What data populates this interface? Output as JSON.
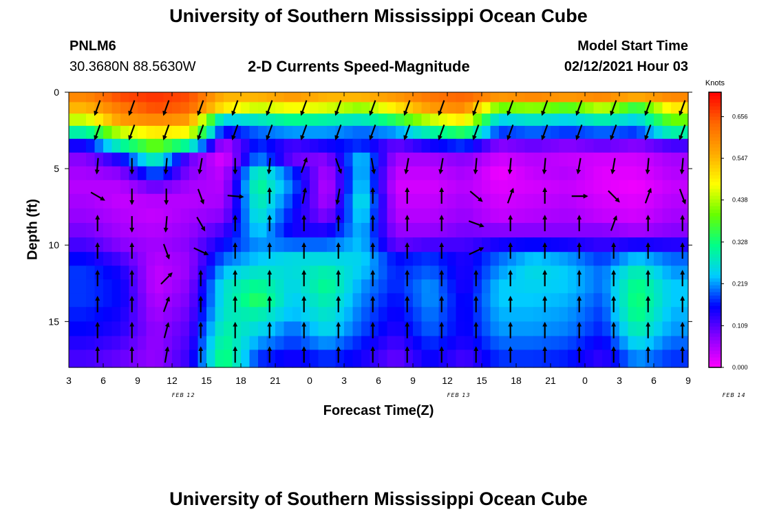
{
  "header": {
    "title_top": "University of Southern Mississippi Ocean Cube",
    "title_bottom": "University of Southern Mississippi Ocean Cube",
    "station_id": "PNLM6",
    "station_coords": "30.3680N 88.5630W",
    "plot_title": "2-D Currents Speed-Magnitude",
    "model_start_label": "Model Start Time",
    "model_start_value": "02/12/2021 Hour 03"
  },
  "chart_data": {
    "type": "heatmap",
    "title": "2-D Currents Speed-Magnitude",
    "xlabel": "Forecast Time(Z)",
    "ylabel": "Depth (ft)",
    "x_hours": [
      3,
      6,
      9,
      12,
      15,
      18,
      21,
      0,
      3,
      6,
      9,
      12,
      15,
      18,
      21,
      0,
      3,
      6,
      9
    ],
    "x_tick_labels": [
      "3",
      "6",
      "9",
      "12",
      "15",
      "18",
      "21",
      "0",
      "3",
      "6",
      "9",
      "12",
      "15",
      "18",
      "21",
      "0",
      "3",
      "6",
      "9"
    ],
    "date_labels": [
      {
        "label": "FEB 12",
        "at_hour": 13
      },
      {
        "label": "FEB 13",
        "at_hour": 37
      },
      {
        "label": "FEB 14",
        "at_hour": 61
      }
    ],
    "xlim_hours_since_start": [
      0,
      54
    ],
    "y_ticks": [
      0,
      5,
      10,
      15
    ],
    "ylim": [
      0,
      18
    ],
    "y_inverted": true,
    "colorbar": {
      "unit": "Knots",
      "ticks": [
        "0.000",
        "0.109",
        "0.219",
        "0.328",
        "0.438",
        "0.547",
        "0.656"
      ],
      "range": [
        0,
        0.72
      ],
      "colors": [
        "#ff00ff",
        "#8800ff",
        "#0000ff",
        "#00ccff",
        "#00ff88",
        "#66ff00",
        "#ffff00",
        "#ffaa00",
        "#ff6600",
        "#ff0000"
      ]
    },
    "depth_rows": [
      0.3,
      1.0,
      1.8,
      2.6,
      3.5,
      4.4,
      5.3,
      6.2,
      7.1,
      8.1,
      9.0,
      10.0,
      10.9,
      11.8,
      12.7,
      13.6,
      14.5,
      15.5,
      16.4,
      17.3
    ],
    "column_centers_hours": [
      1.5,
      4.5,
      7.5,
      10.5,
      13.5,
      16.5,
      19.5,
      22.5,
      25.5,
      28.5,
      31.5,
      34.5,
      37.5,
      40.5,
      43.5,
      46.5,
      49.5,
      52.5
    ],
    "speed_knots_rows": [
      [
        0.6,
        0.66,
        0.68,
        0.66,
        0.55,
        0.55,
        0.58,
        0.55,
        0.55,
        0.58,
        0.62,
        0.64,
        0.58,
        0.6,
        0.58,
        0.6,
        0.56,
        0.6
      ],
      [
        0.55,
        0.62,
        0.66,
        0.64,
        0.5,
        0.45,
        0.48,
        0.46,
        0.42,
        0.5,
        0.58,
        0.6,
        0.4,
        0.42,
        0.38,
        0.45,
        0.35,
        0.5
      ],
      [
        0.45,
        0.58,
        0.6,
        0.58,
        0.25,
        0.28,
        0.32,
        0.3,
        0.28,
        0.35,
        0.45,
        0.5,
        0.25,
        0.28,
        0.25,
        0.3,
        0.25,
        0.4
      ],
      [
        0.3,
        0.45,
        0.5,
        0.48,
        0.15,
        0.2,
        0.22,
        0.22,
        0.2,
        0.22,
        0.3,
        0.35,
        0.18,
        0.2,
        0.18,
        0.2,
        0.18,
        0.3
      ],
      [
        0.15,
        0.3,
        0.4,
        0.3,
        0.05,
        0.18,
        0.12,
        0.15,
        0.18,
        0.1,
        0.15,
        0.18,
        0.08,
        0.1,
        0.08,
        0.1,
        0.08,
        0.12
      ],
      [
        0.08,
        0.15,
        0.3,
        0.1,
        0.02,
        0.22,
        0.1,
        0.08,
        0.25,
        0.06,
        0.06,
        0.08,
        0.03,
        0.05,
        0.04,
        0.03,
        0.03,
        0.06
      ],
      [
        0.06,
        0.08,
        0.2,
        0.08,
        0.04,
        0.3,
        0.18,
        0.05,
        0.25,
        0.04,
        0.04,
        0.06,
        0.01,
        0.04,
        0.05,
        0.02,
        0.02,
        0.05
      ],
      [
        0.05,
        0.05,
        0.1,
        0.06,
        0.05,
        0.32,
        0.2,
        0.04,
        0.26,
        0.03,
        0.03,
        0.05,
        0.02,
        0.03,
        0.04,
        0.02,
        0.01,
        0.04
      ],
      [
        0.06,
        0.04,
        0.05,
        0.05,
        0.06,
        0.3,
        0.18,
        0.05,
        0.28,
        0.04,
        0.04,
        0.06,
        0.03,
        0.04,
        0.05,
        0.03,
        0.02,
        0.05
      ],
      [
        0.07,
        0.05,
        0.04,
        0.06,
        0.08,
        0.28,
        0.16,
        0.08,
        0.26,
        0.05,
        0.05,
        0.07,
        0.04,
        0.05,
        0.06,
        0.04,
        0.03,
        0.06
      ],
      [
        0.09,
        0.06,
        0.05,
        0.07,
        0.12,
        0.25,
        0.15,
        0.14,
        0.24,
        0.07,
        0.07,
        0.09,
        0.08,
        0.08,
        0.08,
        0.08,
        0.06,
        0.08
      ],
      [
        0.12,
        0.08,
        0.06,
        0.08,
        0.16,
        0.22,
        0.2,
        0.2,
        0.24,
        0.1,
        0.12,
        0.12,
        0.15,
        0.16,
        0.15,
        0.13,
        0.15,
        0.14
      ],
      [
        0.16,
        0.12,
        0.05,
        0.07,
        0.2,
        0.24,
        0.26,
        0.26,
        0.25,
        0.16,
        0.18,
        0.14,
        0.2,
        0.24,
        0.22,
        0.18,
        0.24,
        0.2
      ],
      [
        0.18,
        0.15,
        0.04,
        0.07,
        0.24,
        0.28,
        0.26,
        0.3,
        0.24,
        0.17,
        0.2,
        0.14,
        0.22,
        0.26,
        0.24,
        0.2,
        0.3,
        0.22
      ],
      [
        0.18,
        0.16,
        0.04,
        0.08,
        0.27,
        0.32,
        0.25,
        0.32,
        0.22,
        0.17,
        0.22,
        0.14,
        0.24,
        0.25,
        0.24,
        0.2,
        0.33,
        0.24
      ],
      [
        0.18,
        0.16,
        0.05,
        0.09,
        0.27,
        0.35,
        0.24,
        0.3,
        0.21,
        0.16,
        0.22,
        0.15,
        0.24,
        0.24,
        0.23,
        0.19,
        0.34,
        0.24
      ],
      [
        0.17,
        0.15,
        0.06,
        0.1,
        0.28,
        0.3,
        0.23,
        0.28,
        0.2,
        0.15,
        0.21,
        0.15,
        0.23,
        0.23,
        0.22,
        0.18,
        0.33,
        0.23
      ],
      [
        0.16,
        0.14,
        0.07,
        0.11,
        0.3,
        0.26,
        0.2,
        0.26,
        0.19,
        0.14,
        0.2,
        0.15,
        0.22,
        0.22,
        0.21,
        0.17,
        0.3,
        0.22
      ],
      [
        0.14,
        0.12,
        0.07,
        0.12,
        0.32,
        0.22,
        0.18,
        0.22,
        0.17,
        0.12,
        0.18,
        0.14,
        0.2,
        0.2,
        0.19,
        0.15,
        0.26,
        0.2
      ],
      [
        0.12,
        0.1,
        0.07,
        0.13,
        0.34,
        0.18,
        0.15,
        0.18,
        0.15,
        0.1,
        0.16,
        0.12,
        0.18,
        0.18,
        0.17,
        0.13,
        0.22,
        0.18
      ]
    ],
    "vector_depths": [
      1,
      2.6,
      4.8,
      6.8,
      8.6,
      10.4,
      12.2,
      13.9,
      15.6,
      17.2
    ],
    "vector_hours": [
      2.5,
      5.5,
      8.5,
      11.5,
      14.5,
      17.5,
      20.5,
      23.5,
      26.5,
      29.5,
      32.5,
      35.5,
      38.5,
      41.5,
      44.5,
      47.5,
      50.5,
      53.5
    ],
    "vector_direction_deg": [
      [
        200,
        200,
        200,
        200,
        200,
        200,
        200,
        200,
        200,
        200,
        200,
        200,
        200,
        200,
        200,
        200,
        200,
        200
      ],
      [
        200,
        200,
        200,
        200,
        200,
        200,
        200,
        200,
        200,
        200,
        200,
        200,
        200,
        200,
        200,
        200,
        200,
        200
      ],
      [
        185,
        180,
        185,
        190,
        180,
        185,
        20,
        160,
        170,
        190,
        190,
        185,
        185,
        185,
        190,
        190,
        185,
        185
      ],
      [
        120,
        180,
        180,
        160,
        95,
        0,
        10,
        190,
        0,
        0,
        0,
        130,
        20,
        0,
        90,
        135,
        20,
        160
      ],
      [
        0,
        180,
        185,
        150,
        0,
        0,
        0,
        0,
        0,
        0,
        0,
        110,
        0,
        0,
        0,
        20,
        0,
        0
      ],
      [
        0,
        0,
        160,
        115,
        0,
        0,
        0,
        0,
        0,
        0,
        0,
        65,
        0,
        0,
        0,
        0,
        0,
        0
      ],
      [
        0,
        0,
        45,
        0,
        0,
        0,
        0,
        0,
        0,
        0,
        0,
        0,
        0,
        0,
        0,
        0,
        0,
        0
      ],
      [
        0,
        0,
        20,
        0,
        0,
        0,
        0,
        0,
        0,
        0,
        0,
        0,
        0,
        0,
        0,
        0,
        0,
        0
      ],
      [
        0,
        0,
        15,
        0,
        0,
        0,
        0,
        0,
        0,
        0,
        0,
        0,
        0,
        0,
        0,
        0,
        0,
        0
      ],
      [
        0,
        0,
        10,
        0,
        0,
        0,
        0,
        0,
        0,
        0,
        0,
        0,
        0,
        0,
        0,
        0,
        0,
        0
      ]
    ]
  }
}
